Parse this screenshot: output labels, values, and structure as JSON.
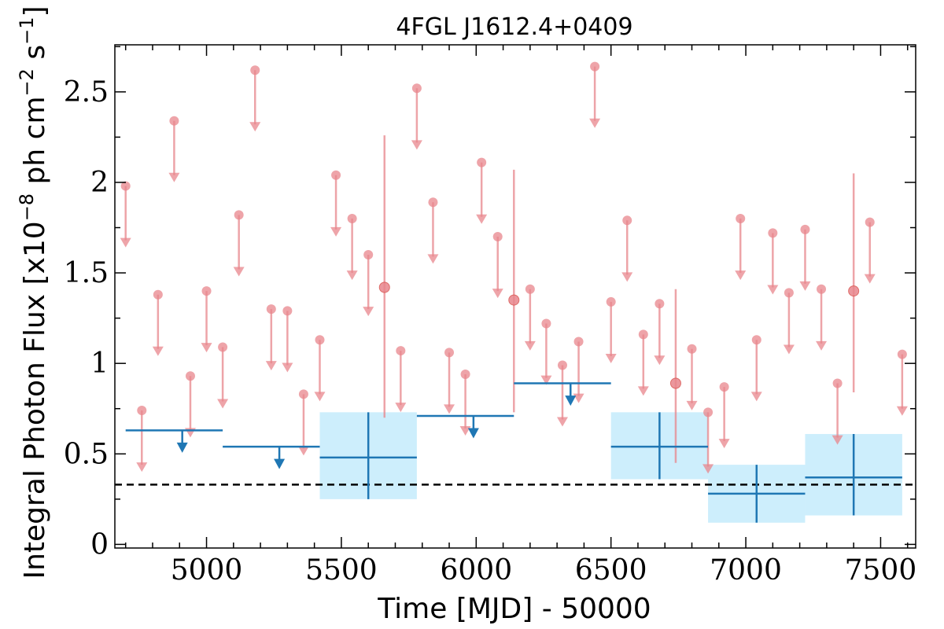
{
  "chart_data": {
    "type": "scatter",
    "title": "4FGL J1612.4+0409",
    "xlabel": "Time [MJD] - 50000",
    "ylabel_prefix": "Integral Photon Flux [x10",
    "ylabel_exp1": "−8",
    "ylabel_mid": " ph cm",
    "ylabel_exp2": "−2",
    "ylabel_mid2": " s",
    "ylabel_exp3": "−1",
    "ylabel_suffix": "]",
    "xlim": [
      4660,
      7630
    ],
    "ylim": [
      -0.02,
      2.76
    ],
    "xticks": [
      5000,
      5500,
      6000,
      6500,
      7000,
      7500
    ],
    "xtick_labels": [
      "5000",
      "5500",
      "6000",
      "6500",
      "7000",
      "7500"
    ],
    "yticks": [
      0,
      0.5,
      1,
      1.5,
      2,
      2.5
    ],
    "ytick_labels": [
      "0",
      "0.5",
      "1",
      "1.5",
      "2",
      "2.5"
    ],
    "reference_line": {
      "y": 0.33,
      "style": "dashed"
    },
    "colors": {
      "short_bins": "#e8868c",
      "long_bins": "#1f77b4",
      "error_box": "#cdeefc",
      "reference": "#000000"
    },
    "short_bin_upper_limits": [
      {
        "x": 4700,
        "y": 1.98
      },
      {
        "x": 4760,
        "y": 0.74
      },
      {
        "x": 4820,
        "y": 1.38
      },
      {
        "x": 4880,
        "y": 2.34
      },
      {
        "x": 4940,
        "y": 0.93
      },
      {
        "x": 5000,
        "y": 1.4
      },
      {
        "x": 5060,
        "y": 1.09
      },
      {
        "x": 5120,
        "y": 1.82
      },
      {
        "x": 5180,
        "y": 2.62
      },
      {
        "x": 5240,
        "y": 1.3
      },
      {
        "x": 5300,
        "y": 1.29
      },
      {
        "x": 5360,
        "y": 0.83
      },
      {
        "x": 5420,
        "y": 1.13
      },
      {
        "x": 5480,
        "y": 2.04
      },
      {
        "x": 5540,
        "y": 1.8
      },
      {
        "x": 5600,
        "y": 1.6
      },
      {
        "x": 5720,
        "y": 1.07
      },
      {
        "x": 5780,
        "y": 2.52
      },
      {
        "x": 5840,
        "y": 1.89
      },
      {
        "x": 5900,
        "y": 1.06
      },
      {
        "x": 5960,
        "y": 0.94
      },
      {
        "x": 6020,
        "y": 2.11
      },
      {
        "x": 6080,
        "y": 1.7
      },
      {
        "x": 6200,
        "y": 1.41
      },
      {
        "x": 6260,
        "y": 1.22
      },
      {
        "x": 6320,
        "y": 0.99
      },
      {
        "x": 6380,
        "y": 1.12
      },
      {
        "x": 6440,
        "y": 2.64
      },
      {
        "x": 6500,
        "y": 1.34
      },
      {
        "x": 6560,
        "y": 1.79
      },
      {
        "x": 6620,
        "y": 1.16
      },
      {
        "x": 6680,
        "y": 1.33
      },
      {
        "x": 6800,
        "y": 1.08
      },
      {
        "x": 6860,
        "y": 0.73
      },
      {
        "x": 6920,
        "y": 0.87
      },
      {
        "x": 6980,
        "y": 1.8
      },
      {
        "x": 7040,
        "y": 1.13
      },
      {
        "x": 7100,
        "y": 1.72
      },
      {
        "x": 7160,
        "y": 1.39
      },
      {
        "x": 7220,
        "y": 1.74
      },
      {
        "x": 7280,
        "y": 1.41
      },
      {
        "x": 7340,
        "y": 0.89
      },
      {
        "x": 7460,
        "y": 1.78
      },
      {
        "x": 7580,
        "y": 1.05
      }
    ],
    "short_bin_detections": [
      {
        "x": 5660,
        "y": 1.42,
        "ylow": 0.7,
        "yhigh": 2.26
      },
      {
        "x": 6140,
        "y": 1.35,
        "ylow": 0.73,
        "yhigh": 2.07
      },
      {
        "x": 6740,
        "y": 0.89,
        "ylow": 0.45,
        "yhigh": 1.41
      },
      {
        "x": 7400,
        "y": 1.4,
        "ylow": 0.84,
        "yhigh": 2.05
      }
    ],
    "long_bin_upper_limits": [
      {
        "xmin": 4700,
        "xmax": 5060,
        "y": 0.63
      },
      {
        "xmin": 5060,
        "xmax": 5420,
        "y": 0.54
      },
      {
        "xmin": 5780,
        "xmax": 6140,
        "y": 0.71
      },
      {
        "xmin": 6140,
        "xmax": 6500,
        "y": 0.89
      }
    ],
    "long_bin_detections": [
      {
        "xmin": 5420,
        "xmax": 5780,
        "y": 0.48,
        "ylow": 0.25,
        "yhigh": 0.73
      },
      {
        "xmin": 6500,
        "xmax": 6860,
        "y": 0.54,
        "ylow": 0.36,
        "yhigh": 0.73
      },
      {
        "xmin": 6860,
        "xmax": 7220,
        "y": 0.28,
        "ylow": 0.12,
        "yhigh": 0.44
      },
      {
        "xmin": 7220,
        "xmax": 7580,
        "y": 0.37,
        "ylow": 0.16,
        "yhigh": 0.61
      }
    ]
  }
}
